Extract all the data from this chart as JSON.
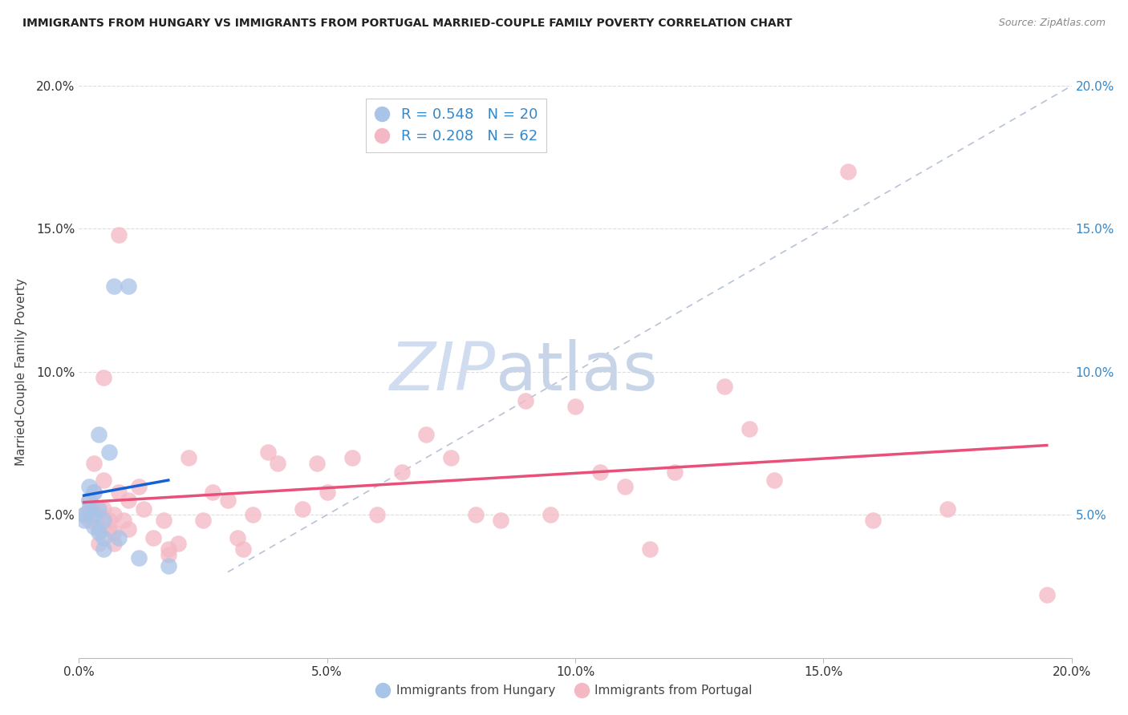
{
  "title": "IMMIGRANTS FROM HUNGARY VS IMMIGRANTS FROM PORTUGAL MARRIED-COUPLE FAMILY POVERTY CORRELATION CHART",
  "source": "Source: ZipAtlas.com",
  "ylabel": "Married-Couple Family Poverty",
  "xlim": [
    0.0,
    0.2
  ],
  "ylim": [
    0.0,
    0.2
  ],
  "xtick_labels": [
    "0.0%",
    "5.0%",
    "10.0%",
    "15.0%",
    "20.0%"
  ],
  "xtick_vals": [
    0.0,
    0.05,
    0.1,
    0.15,
    0.2
  ],
  "ytick_labels": [
    "5.0%",
    "10.0%",
    "15.0%",
    "20.0%"
  ],
  "ytick_vals": [
    0.05,
    0.1,
    0.15,
    0.2
  ],
  "right_ytick_labels": [
    "5.0%",
    "10.0%",
    "15.0%",
    "20.0%"
  ],
  "right_ytick_vals": [
    0.05,
    0.1,
    0.15,
    0.2
  ],
  "legend_hungary": "R = 0.548   N = 20",
  "legend_portugal": "R = 0.208   N = 62",
  "color_hungary": "#a8c4e8",
  "color_portugal": "#f4b8c4",
  "color_line_hungary": "#1560d4",
  "color_line_portugal": "#e8507a",
  "color_diagonal": "#b0bcd0",
  "background_color": "#ffffff",
  "grid_color": "#dddddd",
  "hungary_points": [
    [
      0.001,
      0.05
    ],
    [
      0.001,
      0.048
    ],
    [
      0.002,
      0.06
    ],
    [
      0.002,
      0.055
    ],
    [
      0.002,
      0.052
    ],
    [
      0.003,
      0.058
    ],
    [
      0.003,
      0.05
    ],
    [
      0.003,
      0.046
    ],
    [
      0.004,
      0.078
    ],
    [
      0.004,
      0.052
    ],
    [
      0.004,
      0.044
    ],
    [
      0.005,
      0.048
    ],
    [
      0.005,
      0.042
    ],
    [
      0.005,
      0.038
    ],
    [
      0.006,
      0.072
    ],
    [
      0.007,
      0.13
    ],
    [
      0.008,
      0.042
    ],
    [
      0.01,
      0.13
    ],
    [
      0.012,
      0.035
    ],
    [
      0.018,
      0.032
    ]
  ],
  "portugal_points": [
    [
      0.001,
      0.05
    ],
    [
      0.002,
      0.055
    ],
    [
      0.002,
      0.048
    ],
    [
      0.003,
      0.068
    ],
    [
      0.003,
      0.058
    ],
    [
      0.003,
      0.052
    ],
    [
      0.004,
      0.05
    ],
    [
      0.004,
      0.045
    ],
    [
      0.004,
      0.04
    ],
    [
      0.005,
      0.098
    ],
    [
      0.005,
      0.062
    ],
    [
      0.005,
      0.052
    ],
    [
      0.006,
      0.048
    ],
    [
      0.006,
      0.045
    ],
    [
      0.007,
      0.05
    ],
    [
      0.007,
      0.044
    ],
    [
      0.007,
      0.04
    ],
    [
      0.008,
      0.148
    ],
    [
      0.008,
      0.058
    ],
    [
      0.009,
      0.048
    ],
    [
      0.01,
      0.055
    ],
    [
      0.01,
      0.045
    ],
    [
      0.012,
      0.06
    ],
    [
      0.013,
      0.052
    ],
    [
      0.015,
      0.042
    ],
    [
      0.017,
      0.048
    ],
    [
      0.018,
      0.038
    ],
    [
      0.018,
      0.036
    ],
    [
      0.02,
      0.04
    ],
    [
      0.022,
      0.07
    ],
    [
      0.025,
      0.048
    ],
    [
      0.027,
      0.058
    ],
    [
      0.03,
      0.055
    ],
    [
      0.032,
      0.042
    ],
    [
      0.033,
      0.038
    ],
    [
      0.035,
      0.05
    ],
    [
      0.038,
      0.072
    ],
    [
      0.04,
      0.068
    ],
    [
      0.045,
      0.052
    ],
    [
      0.048,
      0.068
    ],
    [
      0.05,
      0.058
    ],
    [
      0.055,
      0.07
    ],
    [
      0.06,
      0.05
    ],
    [
      0.065,
      0.065
    ],
    [
      0.07,
      0.078
    ],
    [
      0.075,
      0.07
    ],
    [
      0.08,
      0.05
    ],
    [
      0.085,
      0.048
    ],
    [
      0.09,
      0.09
    ],
    [
      0.095,
      0.05
    ],
    [
      0.1,
      0.088
    ],
    [
      0.105,
      0.065
    ],
    [
      0.11,
      0.06
    ],
    [
      0.115,
      0.038
    ],
    [
      0.12,
      0.065
    ],
    [
      0.13,
      0.095
    ],
    [
      0.135,
      0.08
    ],
    [
      0.14,
      0.062
    ],
    [
      0.155,
      0.17
    ],
    [
      0.16,
      0.048
    ],
    [
      0.175,
      0.052
    ],
    [
      0.195,
      0.022
    ]
  ],
  "watermark_zip": "ZIP",
  "watermark_atlas": "atlas",
  "watermark_color_zip": "#d0dcf0",
  "watermark_color_atlas": "#c8d4e8",
  "watermark_fontsize": 60
}
